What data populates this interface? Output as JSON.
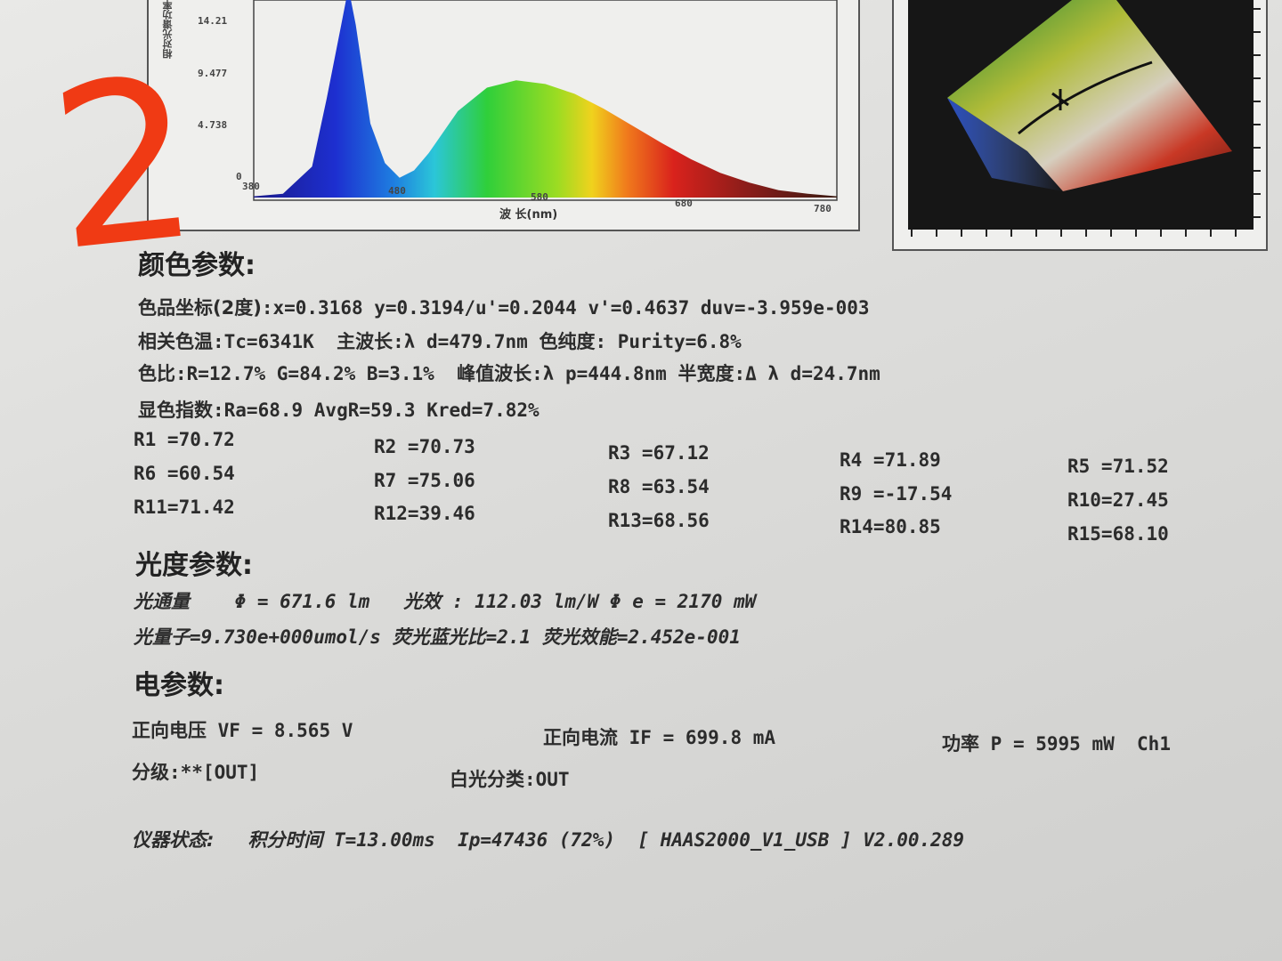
{
  "annotation": {
    "handwritten_mark": "2"
  },
  "spectrum_chart": {
    "chart_data": {
      "type": "area",
      "xlabel": "波 长(nm)",
      "ylabel": "相对光谱功率",
      "x_ticks": [
        "380",
        "480",
        "580",
        "680",
        "780"
      ],
      "y_ticks": [
        "14.21",
        "9.477",
        "4.738",
        "0"
      ],
      "xlim": [
        380,
        780
      ],
      "ylim": [
        0,
        16
      ],
      "x": [
        380,
        400,
        420,
        430,
        440,
        445,
        450,
        460,
        470,
        480,
        490,
        500,
        520,
        540,
        560,
        580,
        600,
        620,
        640,
        660,
        680,
        700,
        720,
        740,
        760,
        780
      ],
      "y": [
        0.1,
        0.3,
        2.5,
        8.0,
        14.0,
        17.0,
        14.0,
        6.0,
        2.8,
        1.6,
        2.2,
        3.6,
        7.0,
        8.9,
        9.5,
        9.2,
        8.4,
        7.2,
        5.8,
        4.4,
        3.1,
        2.0,
        1.2,
        0.6,
        0.3,
        0.1
      ]
    }
  },
  "cie_chart": {
    "type": "chromaticity-diagram"
  },
  "sections": {
    "color": {
      "title": "颜色参数:",
      "chroma_label": "色品坐标(2度)",
      "chroma_values": ":x=0.3168  y=0.3194/u'=0.2044  v'=0.4637  duv=-3.959e-003",
      "cct_label": "相关色温",
      "cct_value": ":Tc=6341K",
      "dominant_label": "主波长",
      "dominant_value": ":λ d=479.7nm",
      "purity_label": "色纯度",
      "purity_value": ": Purity=6.8%",
      "ratio_label": "色比",
      "ratio_value": ":R=12.7% G=84.2% B=3.1%",
      "peak_label": "峰值波长",
      "peak_value": ":λ p=444.8nm",
      "halfwidth_label": "半宽度",
      "halfwidth_value": ":Δ λ d=24.7nm",
      "cri_label": "显色指数",
      "cri_value": ":Ra=68.9  AvgR=59.3  Kred=7.82%",
      "r_values": [
        "R1 =70.72",
        "R2 =70.73",
        "R3 =67.12",
        "R4 =71.89",
        "R5 =71.52",
        "R6 =60.54",
        "R7 =75.06",
        "R8 =63.54",
        "R9 =-17.54",
        "R10=27.45",
        "R11=71.42",
        "R12=39.46",
        "R13=68.56",
        "R14=80.85",
        "R15=68.10"
      ]
    },
    "photometric": {
      "title": "光度参数:",
      "flux_label": "光通量",
      "flux_value": "Φ = 671.6 lm",
      "efficacy_label": "光效",
      "efficacy_value": ": 112.03 lm/W",
      "radiant_value": "Φ e = 2170 mW",
      "quantum_label": "光量子",
      "quantum_value": "=9.730e+000umol/s",
      "fbr_label": "荧光蓝光比",
      "fbr_value": "=2.1",
      "feff_label": "荧光效能",
      "feff_value": "=2.452e-001"
    },
    "electrical": {
      "title": "电参数:",
      "vf_label": "正向电压",
      "vf_value": "VF = 8.565 V",
      "if_label": "正向电流",
      "if_value": "IF = 699.8 mA",
      "p_label": "功率",
      "p_value": "P = 5995 mW",
      "channel": "Ch1",
      "grade_label": "分级",
      "grade_value": ":**[OUT]",
      "white_label": "白光分类",
      "white_value": ":OUT"
    },
    "instrument": {
      "status_label": "仪器状态:",
      "time_label": "积分时间",
      "time_value": "T=13.00ms",
      "ip_value": "Ip=47436 (72%)",
      "device_value": "[ HAAS2000_V1_USB ]",
      "version": "V2.00.289"
    }
  }
}
